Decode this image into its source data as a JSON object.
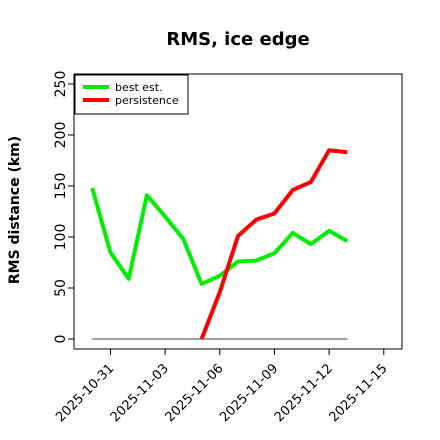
{
  "chart_data": {
    "type": "line",
    "title": "RMS, ice edge",
    "xlabel": "",
    "ylabel": "RMS distance (km)",
    "x_type": "date",
    "xlim": [
      "2025-10-29",
      "2025-11-16"
    ],
    "ylim": [
      0,
      255
    ],
    "y_ticks": [
      0,
      50,
      100,
      150,
      200,
      250
    ],
    "x_ticks": [
      "2025-10-31",
      "2025-11-03",
      "2025-11-06",
      "2025-11-09",
      "2025-11-12",
      "2025-11-15"
    ],
    "x_tick_labels": [
      "2025-10-31",
      "2025-11-03",
      "2025-11-06",
      "2025-11-09",
      "2025-11-12",
      "2025-11-15"
    ],
    "legend_position": "top-left",
    "grid": false,
    "series": [
      {
        "name": "best est.",
        "color": "#00ee00",
        "x": [
          "2025-10-30",
          "2025-10-31",
          "2025-11-01",
          "2025-11-02",
          "2025-11-03",
          "2025-11-04",
          "2025-11-05",
          "2025-11-06",
          "2025-11-07",
          "2025-11-08",
          "2025-11-09",
          "2025-11-10",
          "2025-11-11",
          "2025-11-12",
          "2025-11-13"
        ],
        "values": [
          148,
          85,
          59,
          141,
          120,
          98,
          54,
          62,
          76,
          77,
          84,
          104,
          93,
          106,
          96
        ]
      },
      {
        "name": "persistence",
        "color": "#ff0000",
        "x": [
          "2025-11-05",
          "2025-11-06",
          "2025-11-07",
          "2025-11-08",
          "2025-11-09",
          "2025-11-10",
          "2025-11-11",
          "2025-11-12",
          "2025-11-13"
        ],
        "values": [
          0,
          46,
          101,
          117,
          123,
          146,
          154,
          185,
          183
        ]
      }
    ],
    "reference_line": {
      "color": "#808080",
      "x": [
        "2025-10-30",
        "2025-11-13"
      ],
      "values": [
        0,
        0
      ]
    }
  }
}
